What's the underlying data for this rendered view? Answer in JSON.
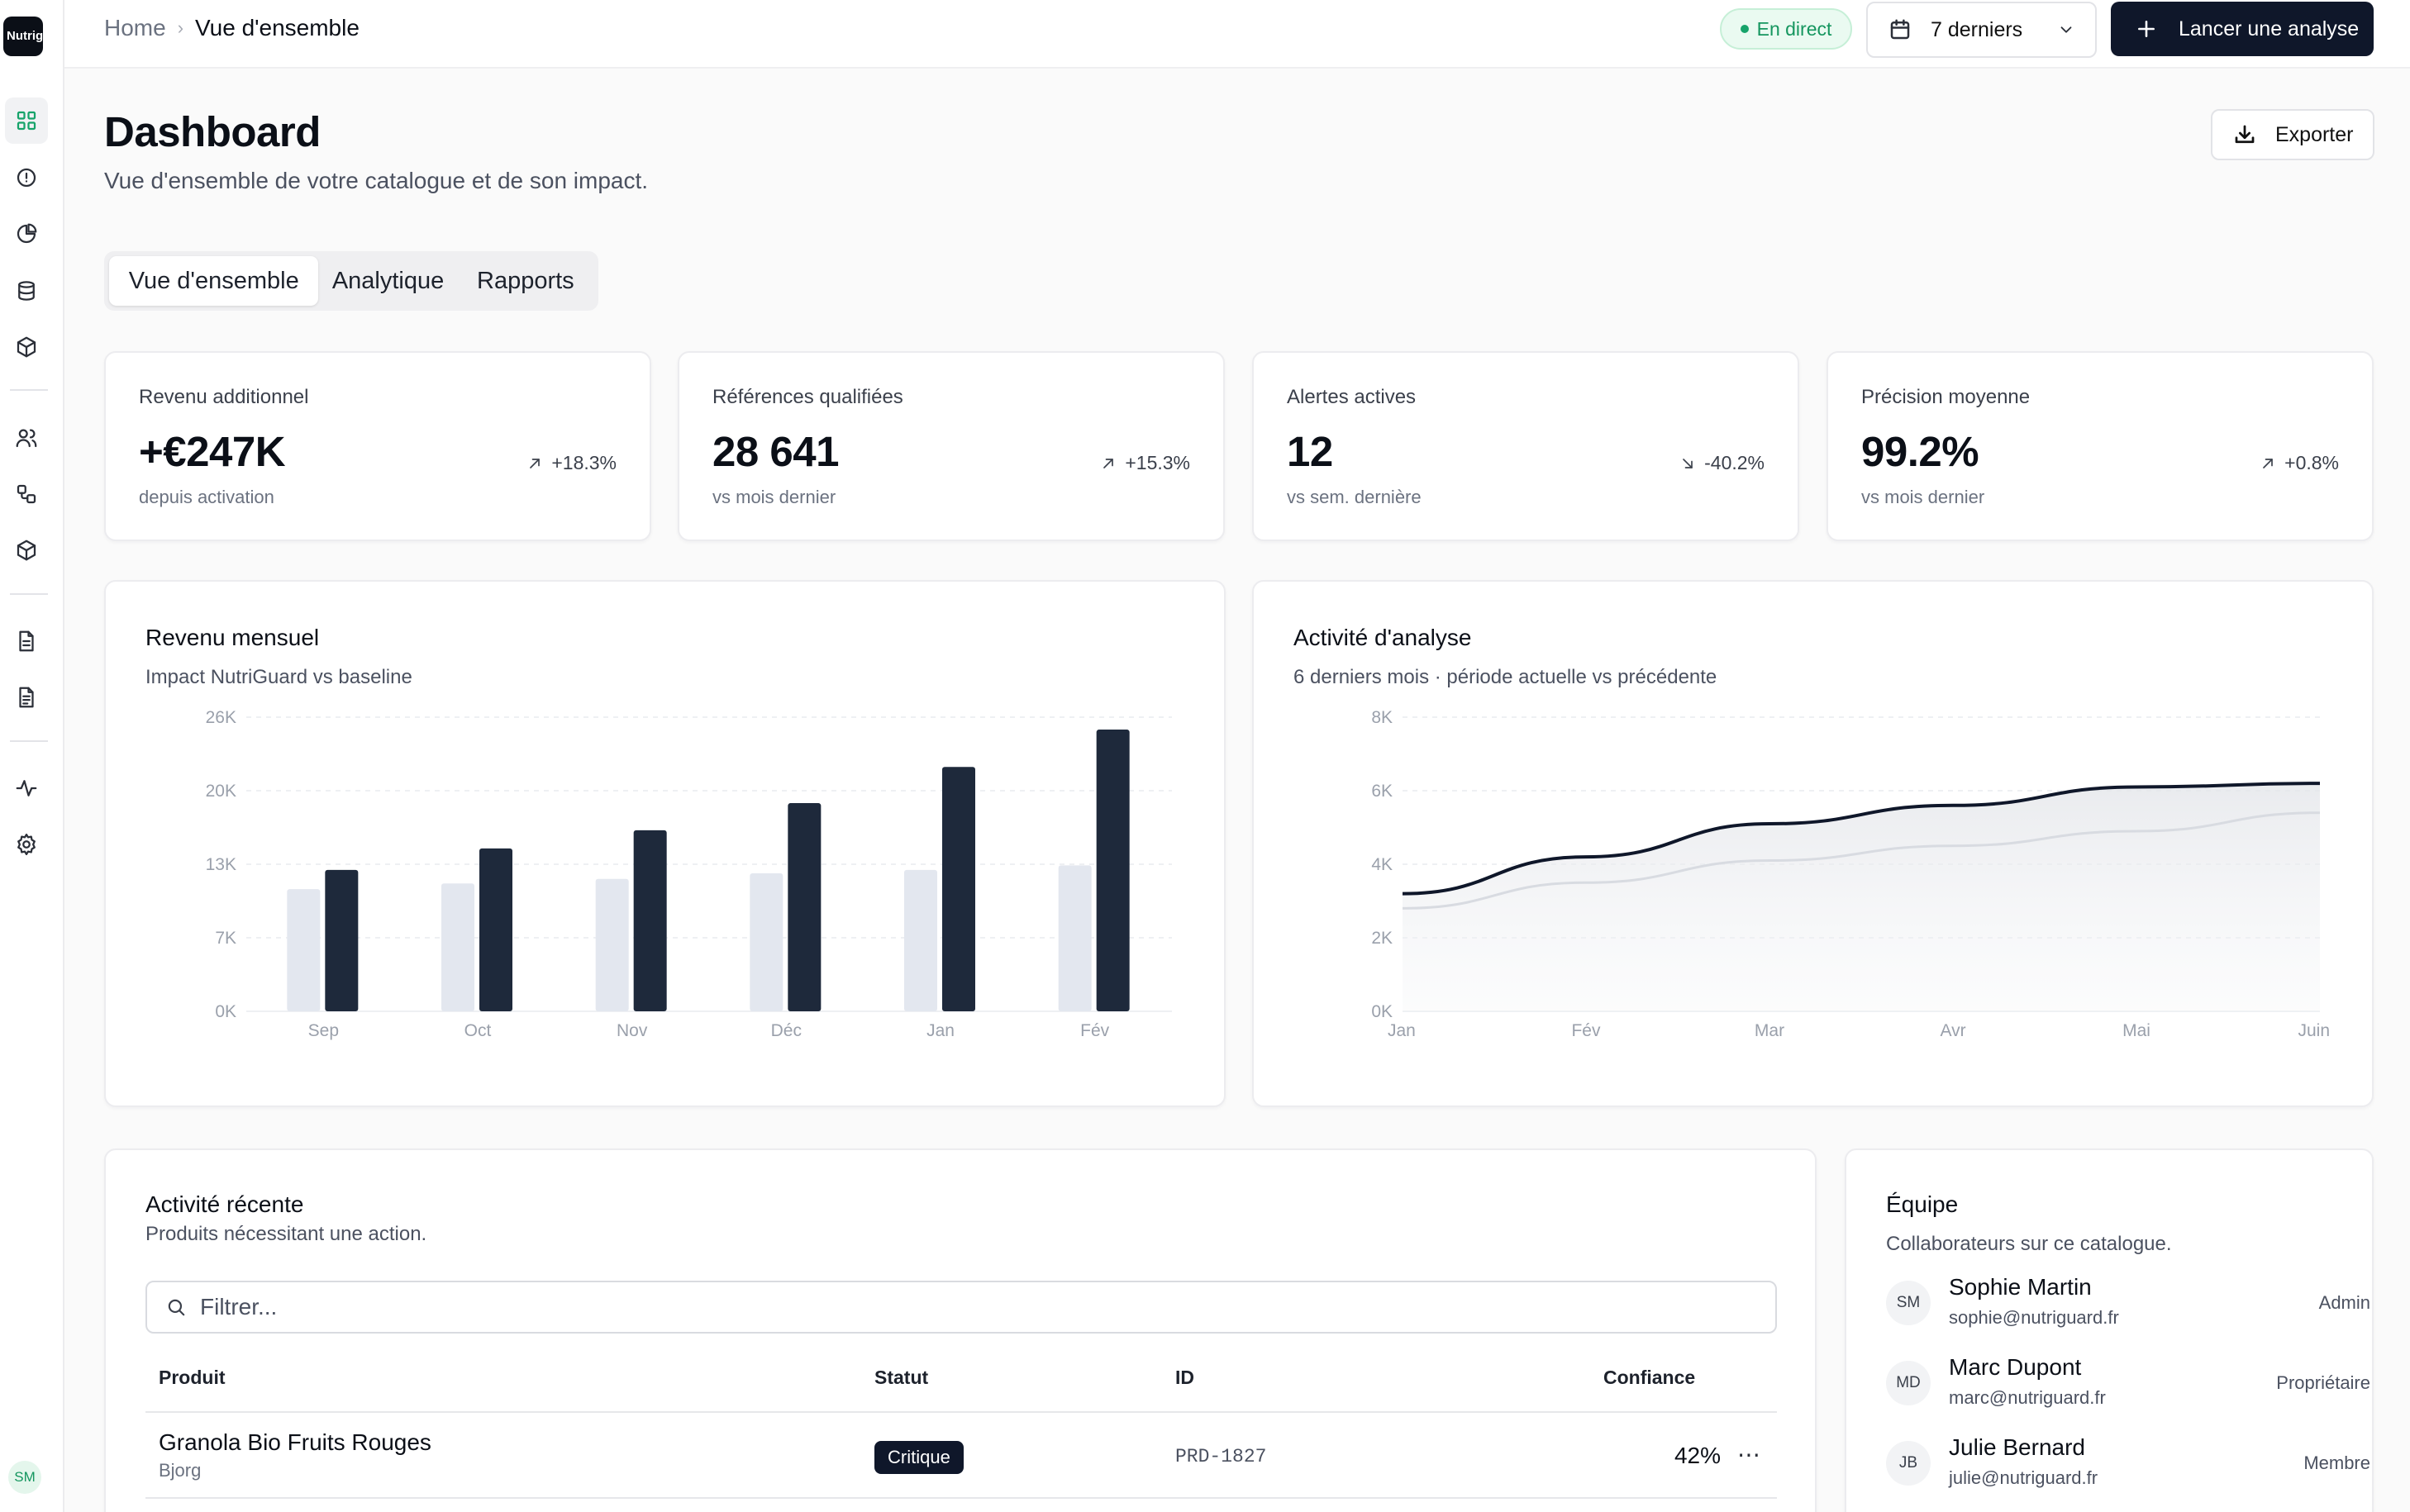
{
  "app": {
    "logo_text": "Nutrig"
  },
  "sidebar": {
    "icons": [
      "grid-icon",
      "alert-circle-icon",
      "pie-chart-icon",
      "database-icon",
      "package-icon",
      "users-icon",
      "workflow-icon",
      "box-icon",
      "file-text-icon",
      "file-list-icon",
      "activity-icon",
      "settings-icon"
    ],
    "avatar": "SM"
  },
  "header": {
    "breadcrumb": {
      "home": "Home",
      "separator": "›",
      "current": "Vue d'ensemble"
    },
    "live_label": "En direct",
    "range_label": "7 derniers",
    "primary_button": "Lancer une analyse"
  },
  "page": {
    "title": "Dashboard",
    "subtitle": "Vue d'ensemble de votre catalogue et de son impact.",
    "export_label": "Exporter"
  },
  "tabs": [
    {
      "label": "Vue d'ensemble",
      "active": true
    },
    {
      "label": "Analytique",
      "active": false
    },
    {
      "label": "Rapports",
      "active": false
    }
  ],
  "kpis": [
    {
      "label": "Revenu additionnel",
      "value": "+€247K",
      "sub": "depuis activation",
      "delta": "+18.3%",
      "trend": "up"
    },
    {
      "label": "Références qualifiées",
      "value": "28 641",
      "sub": "vs mois dernier",
      "delta": "+15.3%",
      "trend": "up"
    },
    {
      "label": "Alertes actives",
      "value": "12",
      "sub": "vs sem. dernière",
      "delta": "-40.2%",
      "trend": "down"
    },
    {
      "label": "Précision moyenne",
      "value": "99.2%",
      "sub": "vs mois dernier",
      "delta": "+0.8%",
      "trend": "up"
    }
  ],
  "revenue_chart": {
    "title": "Revenu mensuel",
    "description": "Impact NutriGuard vs baseline",
    "colors": {
      "baseline": "#e3e7ef",
      "current": "#1e293b"
    }
  },
  "activity_chart": {
    "title": "Activité d'analyse",
    "description": "6 derniers mois · période actuelle vs précédente",
    "colors": {
      "current": "#0f172a",
      "previous": "#d8dbe1"
    }
  },
  "chart_data": [
    {
      "type": "bar",
      "categories": [
        "Sep",
        "Oct",
        "Nov",
        "Déc",
        "Jan",
        "Fév"
      ],
      "yticks": [
        "0K",
        "7K",
        "13K",
        "20K",
        "26K"
      ],
      "ylim": [
        0,
        26000
      ],
      "series": [
        {
          "values": [
            10800,
            11300,
            11700,
            12200,
            12500,
            12900
          ]
        },
        {
          "values": [
            12500,
            14400,
            16000,
            18400,
            21600,
            24900
          ]
        }
      ]
    },
    {
      "type": "area",
      "x": [
        "Jan",
        "Fév",
        "Mar",
        "Avr",
        "Mai",
        "Juin"
      ],
      "yticks": [
        "0K",
        "2K",
        "4K",
        "6K",
        "8K"
      ],
      "ylim": [
        0,
        8000
      ],
      "series": [
        {
          "values": [
            3200,
            4200,
            5100,
            5600,
            6100,
            6200
          ]
        },
        {
          "values": [
            2800,
            3500,
            4100,
            4500,
            4900,
            5400
          ]
        }
      ]
    }
  ],
  "activity": {
    "title": "Activité récente",
    "description": "Produits nécessitant une action.",
    "filter_placeholder": "Filtrer...",
    "columns": {
      "product": "Produit",
      "status": "Statut",
      "id": "ID",
      "confidence": "Confiance"
    },
    "rows": [
      {
        "product": "Granola Bio Fruits Rouges",
        "brand": "Bjorg",
        "status": "Critique",
        "id": "PRD-1827",
        "confidence": "42%"
      }
    ]
  },
  "team": {
    "title": "Équipe",
    "description": "Collaborateurs sur ce catalogue.",
    "members": [
      {
        "initials": "SM",
        "name": "Sophie Martin",
        "email": "sophie@nutriguard.fr",
        "role": "Admin"
      },
      {
        "initials": "MD",
        "name": "Marc Dupont",
        "email": "marc@nutriguard.fr",
        "role": "Propriétaire"
      },
      {
        "initials": "JB",
        "name": "Julie Bernard",
        "email": "julie@nutriguard.fr",
        "role": "Membre"
      }
    ]
  }
}
